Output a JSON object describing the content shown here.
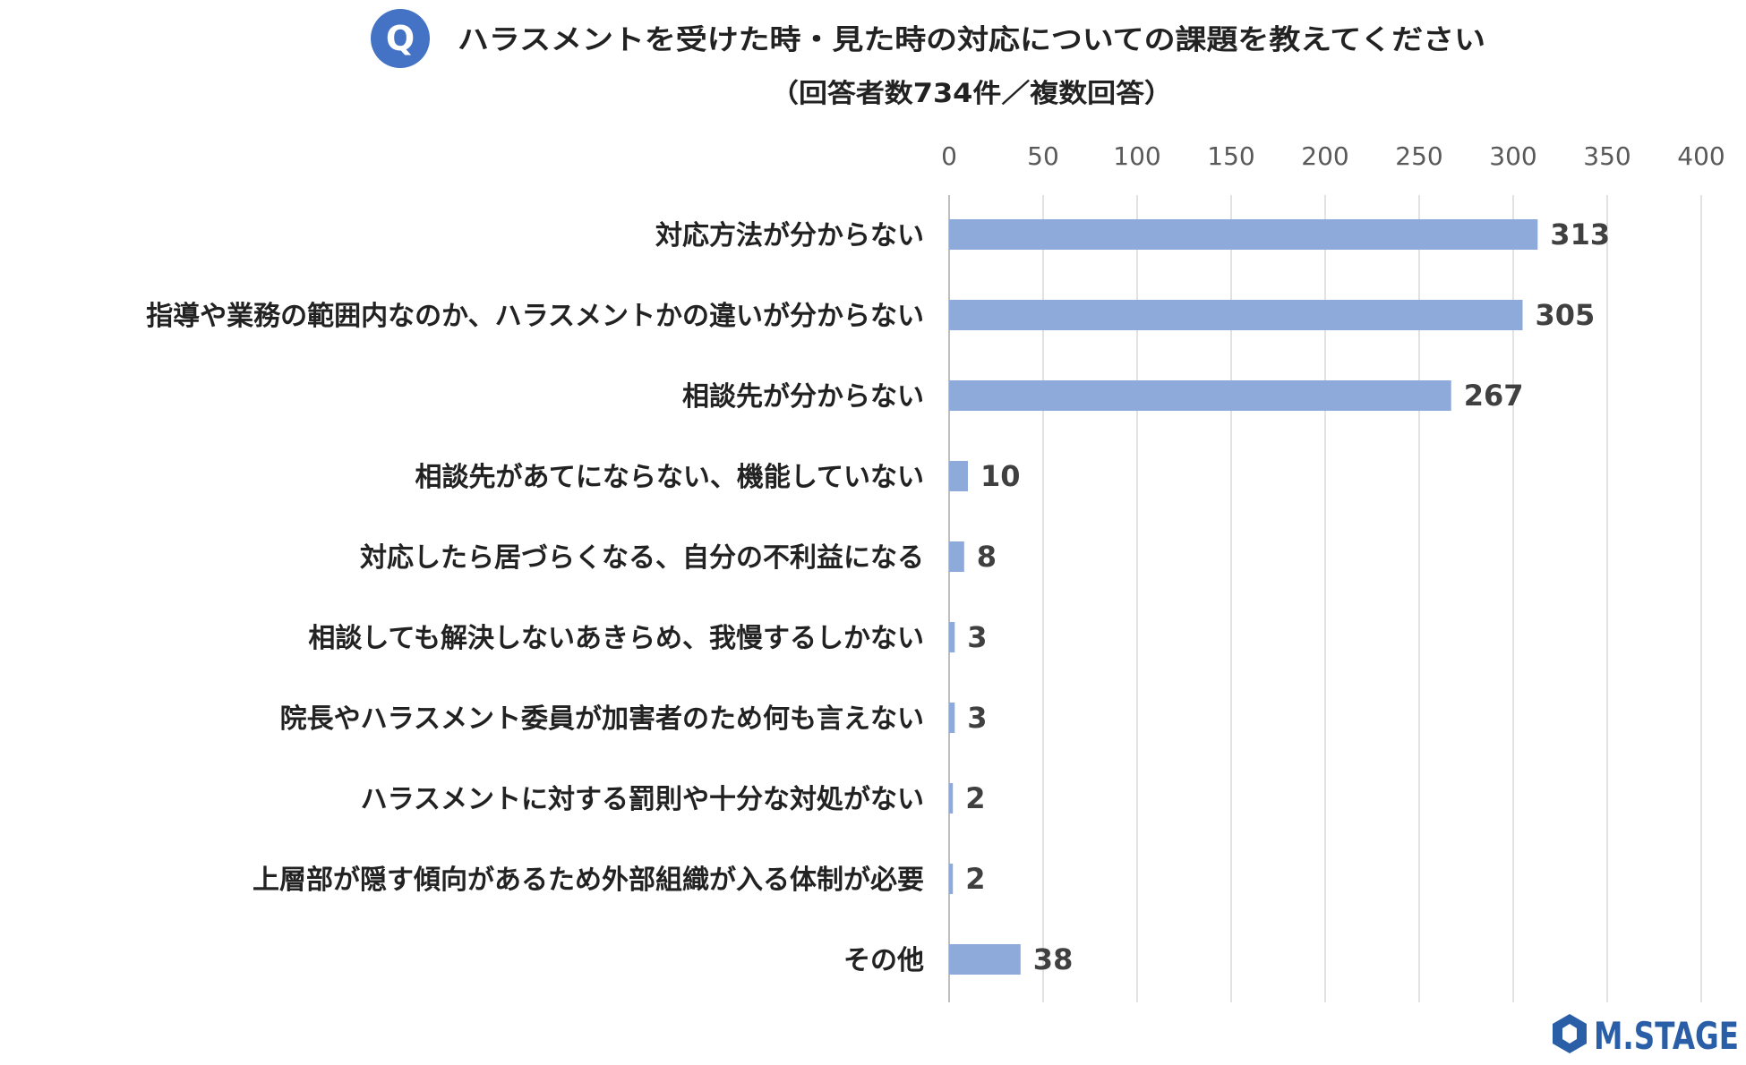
{
  "question_badge": "Q",
  "logo": {
    "text": "M.STAGE",
    "color": "#2a5fa8"
  },
  "colors": {
    "bar": "#8eaadb",
    "grid": "#d9d9d9",
    "badge": "#4472c4"
  },
  "chart_data": {
    "type": "bar",
    "orientation": "horizontal",
    "title": "ハラスメントを受けた時・見た時の対応についての課題を教えてください",
    "subtitle": "（回答者数734件／複数回答）",
    "categories": [
      "対応方法が分からない",
      "指導や業務の範囲内なのか、ハラスメントかの違いが分からない",
      "相談先が分からない",
      "相談先があてにならない、機能していない",
      "対応したら居づらくなる、自分の不利益になる",
      "相談しても解決しないあきらめ、我慢するしかない",
      "院長やハラスメント委員が加害者のため何も言えない",
      "ハラスメントに対する罰則や十分な対処がない",
      "上層部が隠す傾向があるため外部組織が入る体制が必要",
      "その他"
    ],
    "values": [
      313,
      305,
      267,
      10,
      8,
      3,
      3,
      2,
      2,
      38
    ],
    "xlim": [
      0,
      400
    ],
    "ticks": [
      "0",
      "50",
      "100",
      "150",
      "200",
      "250",
      "300",
      "350",
      "400"
    ],
    "grid": true,
    "axis_position": "top",
    "legend": "none"
  }
}
